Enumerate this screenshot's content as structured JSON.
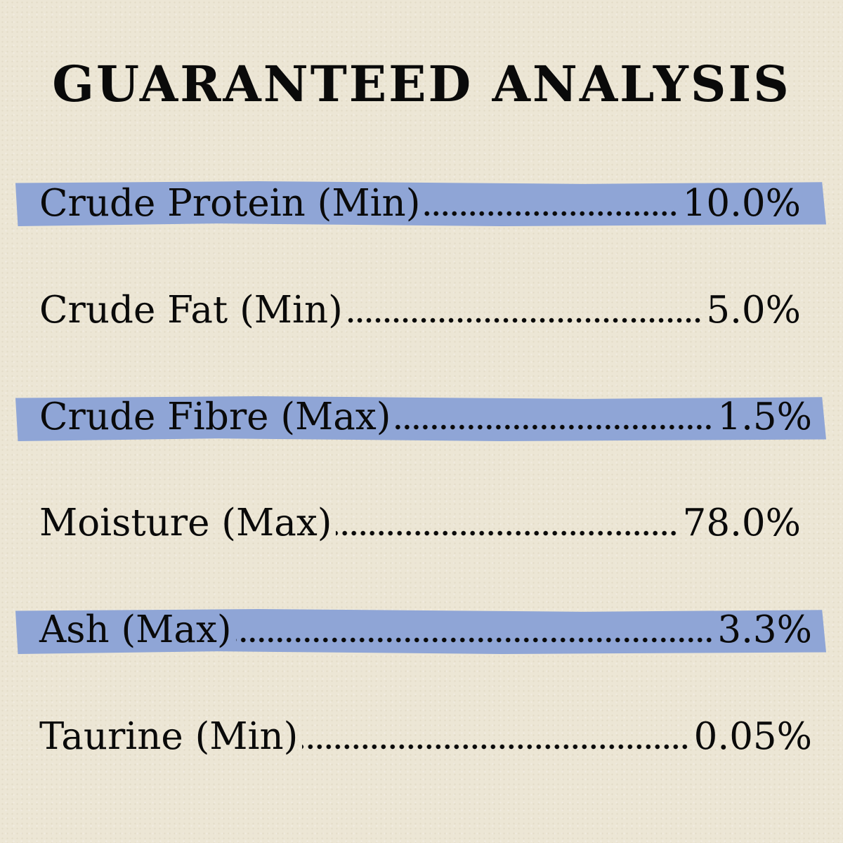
{
  "title": "GUARANTEED ANALYSIS",
  "colors": {
    "background": "#ece6d5",
    "highlight": "#8fa5d6",
    "text": "#0a0a0a"
  },
  "rows": [
    {
      "label": "Crude Protein (Min)",
      "value": "10.0%",
      "highlighted": true
    },
    {
      "label": "Crude Fat (Min)",
      "value": "5.0%",
      "highlighted": false
    },
    {
      "label": "Crude Fibre (Max)",
      "value": "1.5%",
      "highlighted": true
    },
    {
      "label": "Moisture (Max)",
      "value": "78.0%",
      "highlighted": false
    },
    {
      "label": "Ash (Max)",
      "value": "3.3%",
      "highlighted": true
    },
    {
      "label": "Taurine (Min)",
      "value": "0.05%",
      "highlighted": false
    }
  ]
}
